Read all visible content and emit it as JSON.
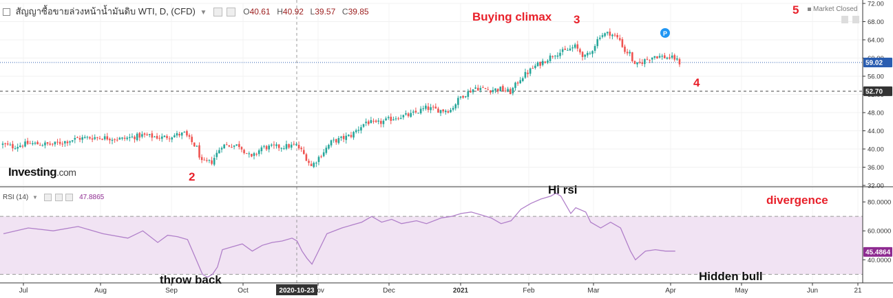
{
  "header": {
    "title": "สัญญาซื้อขายล่วงหน้าน้ำมันดิบ WTI, D, (CFD)",
    "ohlc": [
      {
        "label": "O",
        "value": "40.61"
      },
      {
        "label": "H",
        "value": "40.92"
      },
      {
        "label": "L",
        "value": "39.57"
      },
      {
        "label": "C",
        "value": "39.85"
      }
    ],
    "market_status": "Market Closed"
  },
  "logo": {
    "main": "Investing",
    "suffix": ".com"
  },
  "price_badges": {
    "current": "59.02",
    "level": "52.70"
  },
  "rsi": {
    "label": "RSI (14)",
    "value": "47.8865",
    "badge": "45.4864"
  },
  "crosshair_date": "2020-10-23",
  "annotations": {
    "buying_climax": "Buying climax",
    "n3": "3",
    "n2": "2",
    "n4": "4",
    "n5": "5",
    "hi_rsi": "Hi rsi",
    "divergence": "divergence",
    "throw_back": "throw back",
    "hidden_bull": "Hidden bull"
  },
  "colors": {
    "up": "#26a69a",
    "down": "#ef5350",
    "rsi_line": "#b07fc9",
    "rsi_band": "#f1e3f3",
    "annotation": "#e8202a"
  },
  "chart_data": [
    {
      "type": "candlestick",
      "title": "สัญญาซื้อขายล่วงหน้าน้ำมันดิบ WTI, D, (CFD)",
      "ylim": [
        32,
        72
      ],
      "y_ticks": [
        "72.00",
        "68.00",
        "64.00",
        "60.00",
        "56.00",
        "52.00",
        "48.00",
        "44.00",
        "40.00",
        "36.00",
        "32.00"
      ],
      "x_ticks": [
        "Jul",
        "Aug",
        "Sep",
        "Oct",
        "Nov",
        "Dec",
        "2021",
        "Feb",
        "Mar",
        "Apr",
        "May",
        "Jun",
        "21"
      ],
      "horizontal_levels": [
        59.02,
        52.7
      ],
      "close_path": [
        [
          0,
          41.0
        ],
        [
          4,
          40.5
        ],
        [
          10,
          41.2
        ],
        [
          20,
          41.0
        ],
        [
          30,
          42.3
        ],
        [
          38,
          42.6
        ],
        [
          48,
          42.2
        ],
        [
          56,
          43.0
        ],
        [
          64,
          42.5
        ],
        [
          73,
          43.4
        ],
        [
          78,
          40.2
        ],
        [
          80,
          37.0
        ],
        [
          84,
          37.2
        ],
        [
          88,
          40.8
        ],
        [
          95,
          40.8
        ],
        [
          100,
          38.0
        ],
        [
          104,
          40.3
        ],
        [
          112,
          40.5
        ],
        [
          118,
          40.8
        ],
        [
          120,
          39.6
        ],
        [
          122,
          38.0
        ],
        [
          124,
          36.2
        ],
        [
          126,
          37.5
        ],
        [
          132,
          41.5
        ],
        [
          140,
          43.0
        ],
        [
          146,
          46.0
        ],
        [
          150,
          45.5
        ],
        [
          158,
          47.0
        ],
        [
          164,
          47.5
        ],
        [
          170,
          49.0
        ],
        [
          176,
          48.5
        ],
        [
          180,
          48.6
        ],
        [
          184,
          51.5
        ],
        [
          190,
          53.5
        ],
        [
          196,
          53.0
        ],
        [
          200,
          53.2
        ],
        [
          204,
          52.5
        ],
        [
          208,
          55.5
        ],
        [
          214,
          58.2
        ],
        [
          218,
          59.5
        ],
        [
          222,
          61.0
        ],
        [
          226,
          61.5
        ],
        [
          230,
          62.5
        ],
        [
          234,
          60.2
        ],
        [
          236,
          61.0
        ],
        [
          240,
          65.0
        ],
        [
          244,
          65.5
        ],
        [
          248,
          64.0
        ],
        [
          250,
          61.5
        ],
        [
          252,
          61.0
        ],
        [
          254,
          58.2
        ],
        [
          258,
          59.5
        ],
        [
          262,
          60.5
        ],
        [
          266,
          60.2
        ],
        [
          270,
          59.9
        ],
        [
          272,
          59.0
        ]
      ]
    },
    {
      "type": "line",
      "title": "RSI (14)",
      "ylim": [
        25,
        90
      ],
      "y_ticks": [
        "80.0000",
        "60.0000",
        "40.0000"
      ],
      "band": [
        30,
        70
      ],
      "path": [
        [
          0,
          58
        ],
        [
          10,
          62
        ],
        [
          20,
          60
        ],
        [
          30,
          63
        ],
        [
          40,
          58
        ],
        [
          50,
          55
        ],
        [
          56,
          60
        ],
        [
          62,
          52
        ],
        [
          66,
          57
        ],
        [
          70,
          56
        ],
        [
          74,
          54
        ],
        [
          78,
          38
        ],
        [
          80,
          30
        ],
        [
          82,
          28
        ],
        [
          84,
          30
        ],
        [
          86,
          35
        ],
        [
          88,
          47
        ],
        [
          92,
          49
        ],
        [
          96,
          51
        ],
        [
          100,
          46
        ],
        [
          104,
          50
        ],
        [
          108,
          52
        ],
        [
          112,
          53
        ],
        [
          116,
          55
        ],
        [
          118,
          53
        ],
        [
          120,
          46
        ],
        [
          122,
          41
        ],
        [
          124,
          37
        ],
        [
          126,
          44
        ],
        [
          130,
          58
        ],
        [
          136,
          62
        ],
        [
          140,
          64
        ],
        [
          144,
          66
        ],
        [
          148,
          70
        ],
        [
          152,
          66
        ],
        [
          156,
          68
        ],
        [
          160,
          65
        ],
        [
          166,
          67
        ],
        [
          170,
          65
        ],
        [
          176,
          69
        ],
        [
          180,
          70
        ],
        [
          184,
          72
        ],
        [
          188,
          73
        ],
        [
          192,
          71
        ],
        [
          196,
          69
        ],
        [
          200,
          65
        ],
        [
          204,
          67
        ],
        [
          208,
          75
        ],
        [
          212,
          79
        ],
        [
          216,
          82
        ],
        [
          220,
          84
        ],
        [
          222,
          86
        ],
        [
          224,
          84
        ],
        [
          226,
          78
        ],
        [
          228,
          72
        ],
        [
          230,
          76
        ],
        [
          234,
          73
        ],
        [
          236,
          66
        ],
        [
          240,
          62
        ],
        [
          244,
          66
        ],
        [
          248,
          62
        ],
        [
          250,
          54
        ],
        [
          252,
          46
        ],
        [
          254,
          40
        ],
        [
          258,
          46
        ],
        [
          262,
          47
        ],
        [
          266,
          46
        ],
        [
          270,
          46
        ]
      ]
    }
  ]
}
